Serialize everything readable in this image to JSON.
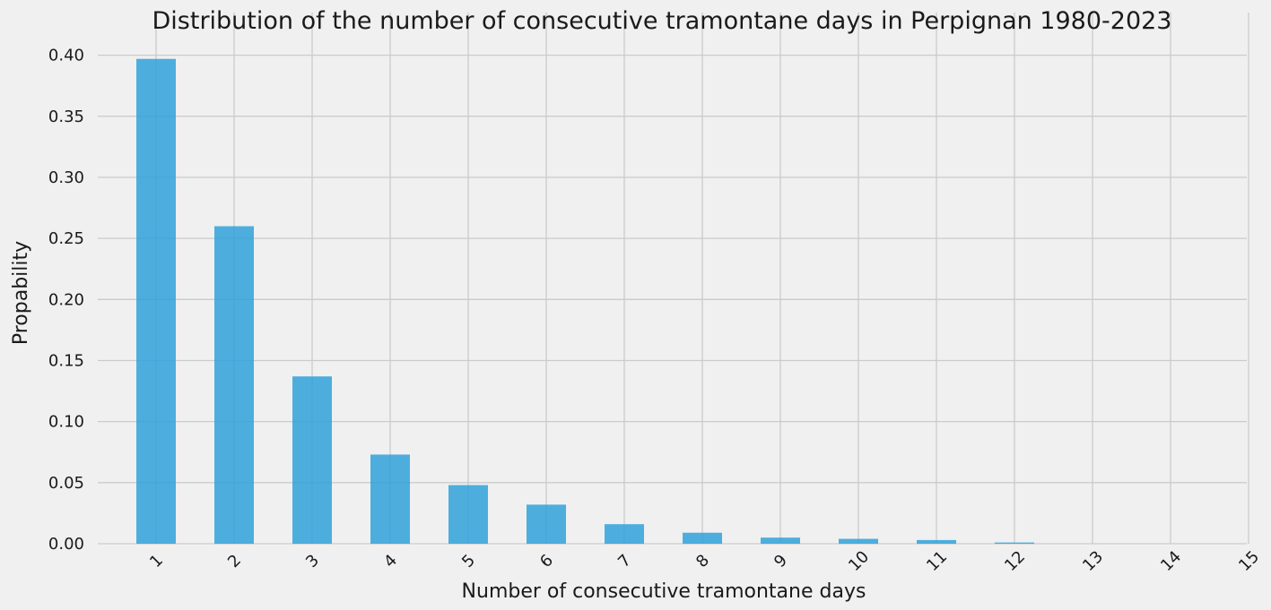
{
  "chart_data": {
    "type": "bar",
    "title": "Distribution of the number of consecutive tramontane days in Perpignan 1980-2023",
    "xlabel": "Number of consecutive tramontane days",
    "ylabel": "Propability",
    "categories": [
      "1",
      "2",
      "3",
      "4",
      "5",
      "6",
      "7",
      "8",
      "9",
      "10",
      "11",
      "12",
      "13",
      "14",
      "15"
    ],
    "values": [
      0.397,
      0.26,
      0.137,
      0.073,
      0.048,
      0.032,
      0.016,
      0.009,
      0.005,
      0.004,
      0.003,
      0.001,
      0.0,
      0.0,
      0.0
    ],
    "ylim": [
      0,
      0.41
    ],
    "yticks": [
      "0.00",
      "0.05",
      "0.10",
      "0.15",
      "0.20",
      "0.25",
      "0.30",
      "0.35",
      "0.40"
    ],
    "grid": true,
    "bar_color": "#30a2da",
    "background_color": "#f0f0f0"
  }
}
